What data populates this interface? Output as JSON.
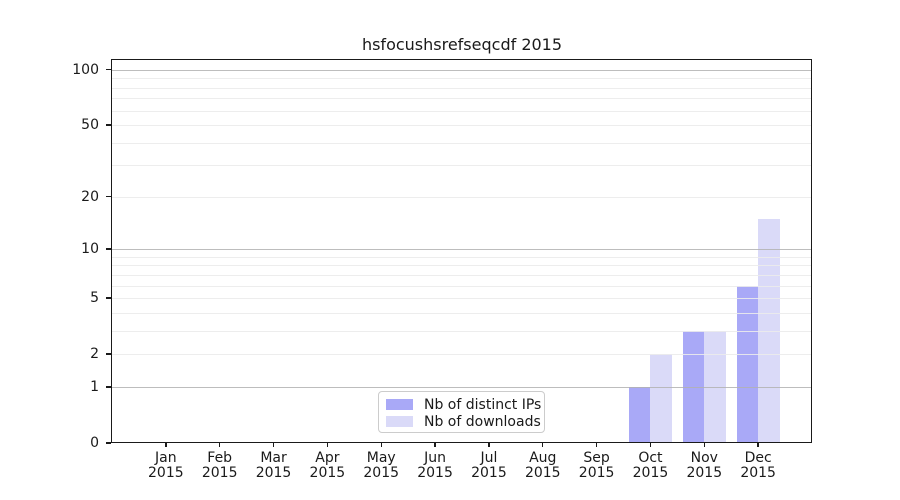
{
  "title": "hsfocushsrefseqcdf 2015",
  "chart_data": {
    "type": "bar",
    "title": "hsfocushsrefseqcdf 2015",
    "categories": [
      "Jan",
      "Feb",
      "Mar",
      "Apr",
      "May",
      "Jun",
      "Jul",
      "Aug",
      "Sep",
      "Oct",
      "Nov",
      "Dec"
    ],
    "category_year": "2015",
    "series": [
      {
        "name": "Nb of distinct IPs",
        "color": "#a9a9f7",
        "values": [
          0,
          0,
          0,
          0,
          0,
          0,
          0,
          0,
          0,
          1,
          3,
          6
        ]
      },
      {
        "name": "Nb of downloads",
        "color": "#dadaf8",
        "values": [
          0,
          0,
          0,
          0,
          0,
          0,
          0,
          0,
          0,
          2,
          3,
          15
        ]
      }
    ],
    "xlabel": "",
    "ylabel": "",
    "y_scale": "log1p",
    "ylim": [
      0,
      113
    ],
    "y_ticks": [
      0,
      1,
      2,
      5,
      10,
      20,
      50,
      100
    ],
    "grid": {
      "on": true,
      "major_values": [
        1,
        10,
        100
      ],
      "minor_values": [
        2,
        3,
        4,
        5,
        6,
        7,
        8,
        9,
        20,
        30,
        40,
        50,
        60,
        70,
        80,
        90
      ],
      "major_color": "#b2b2b2",
      "minor_color": "#ebebeb"
    },
    "legend_position": "lower center",
    "text_color": "#1a1a1a",
    "spine_color": "#1a1a1a"
  }
}
